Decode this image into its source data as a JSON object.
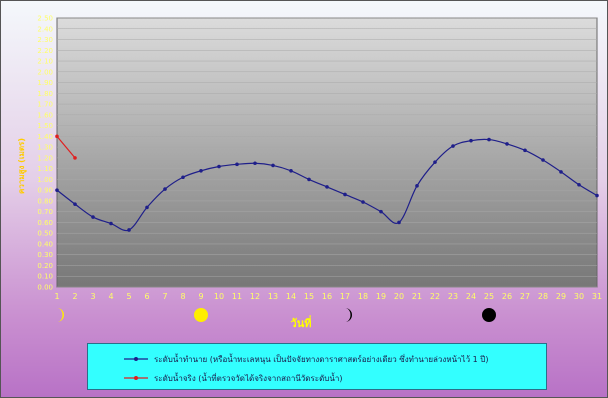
{
  "chart_data": {
    "type": "line",
    "ylabel": "ความสูง (เมตร)",
    "xlabel": "วันที่",
    "ylim": [
      0,
      2.5
    ],
    "ytick_step": 0.1,
    "grid": true,
    "legend_position": "bottom",
    "x": [
      1,
      2,
      3,
      4,
      5,
      6,
      7,
      8,
      9,
      10,
      11,
      12,
      13,
      14,
      15,
      16,
      17,
      18,
      19,
      20,
      21,
      22,
      23,
      24,
      25,
      26,
      27,
      28,
      29,
      30,
      31
    ],
    "series": [
      {
        "name": "ระดับน้ำทำนาย (หรือน้ำทะเลหนุน เป็นปัจจัยทางดาราศาสตร์อย่างเดียว ซึ่งทำนายล่วงหน้าไว้ 1 ปี)",
        "color": "#1f1f8a",
        "x": [
          1,
          2,
          3,
          4,
          5,
          6,
          7,
          8,
          9,
          10,
          11,
          12,
          13,
          14,
          15,
          16,
          17,
          18,
          19,
          20,
          21,
          22,
          23,
          24,
          25,
          26,
          27,
          28,
          29,
          30,
          31
        ],
        "values": [
          0.9,
          0.77,
          0.65,
          0.59,
          0.53,
          0.74,
          0.91,
          1.02,
          1.08,
          1.12,
          1.14,
          1.15,
          1.13,
          1.08,
          1.0,
          0.93,
          0.86,
          0.79,
          0.7,
          0.6,
          0.94,
          1.16,
          1.31,
          1.36,
          1.37,
          1.33,
          1.27,
          1.18,
          1.07,
          0.95,
          0.85
        ]
      },
      {
        "name": "ระดับน้ำจริง (น้ำที่ตรวจวัดได้จริงจากสถานีวัดระดับน้ำ)",
        "color": "#e02020",
        "x": [
          1,
          2
        ],
        "values": [
          1.4,
          1.2
        ]
      }
    ]
  },
  "moon_phases": [
    {
      "day": 1,
      "icon": "crescent-moon-icon",
      "color": "#ffee00"
    },
    {
      "day": 9,
      "icon": "full-moon-icon",
      "color": "#ffee00"
    },
    {
      "day": 17,
      "icon": "crescent-moon-icon",
      "color": "#000000"
    },
    {
      "day": 25,
      "icon": "new-moon-icon",
      "color": "#000000"
    }
  ],
  "colors": {
    "plot_background_top": "#d9d9d9",
    "plot_background_bottom": "#7a7a7a",
    "tick_label": "#ffff66",
    "legend_background": "#33ffff"
  }
}
